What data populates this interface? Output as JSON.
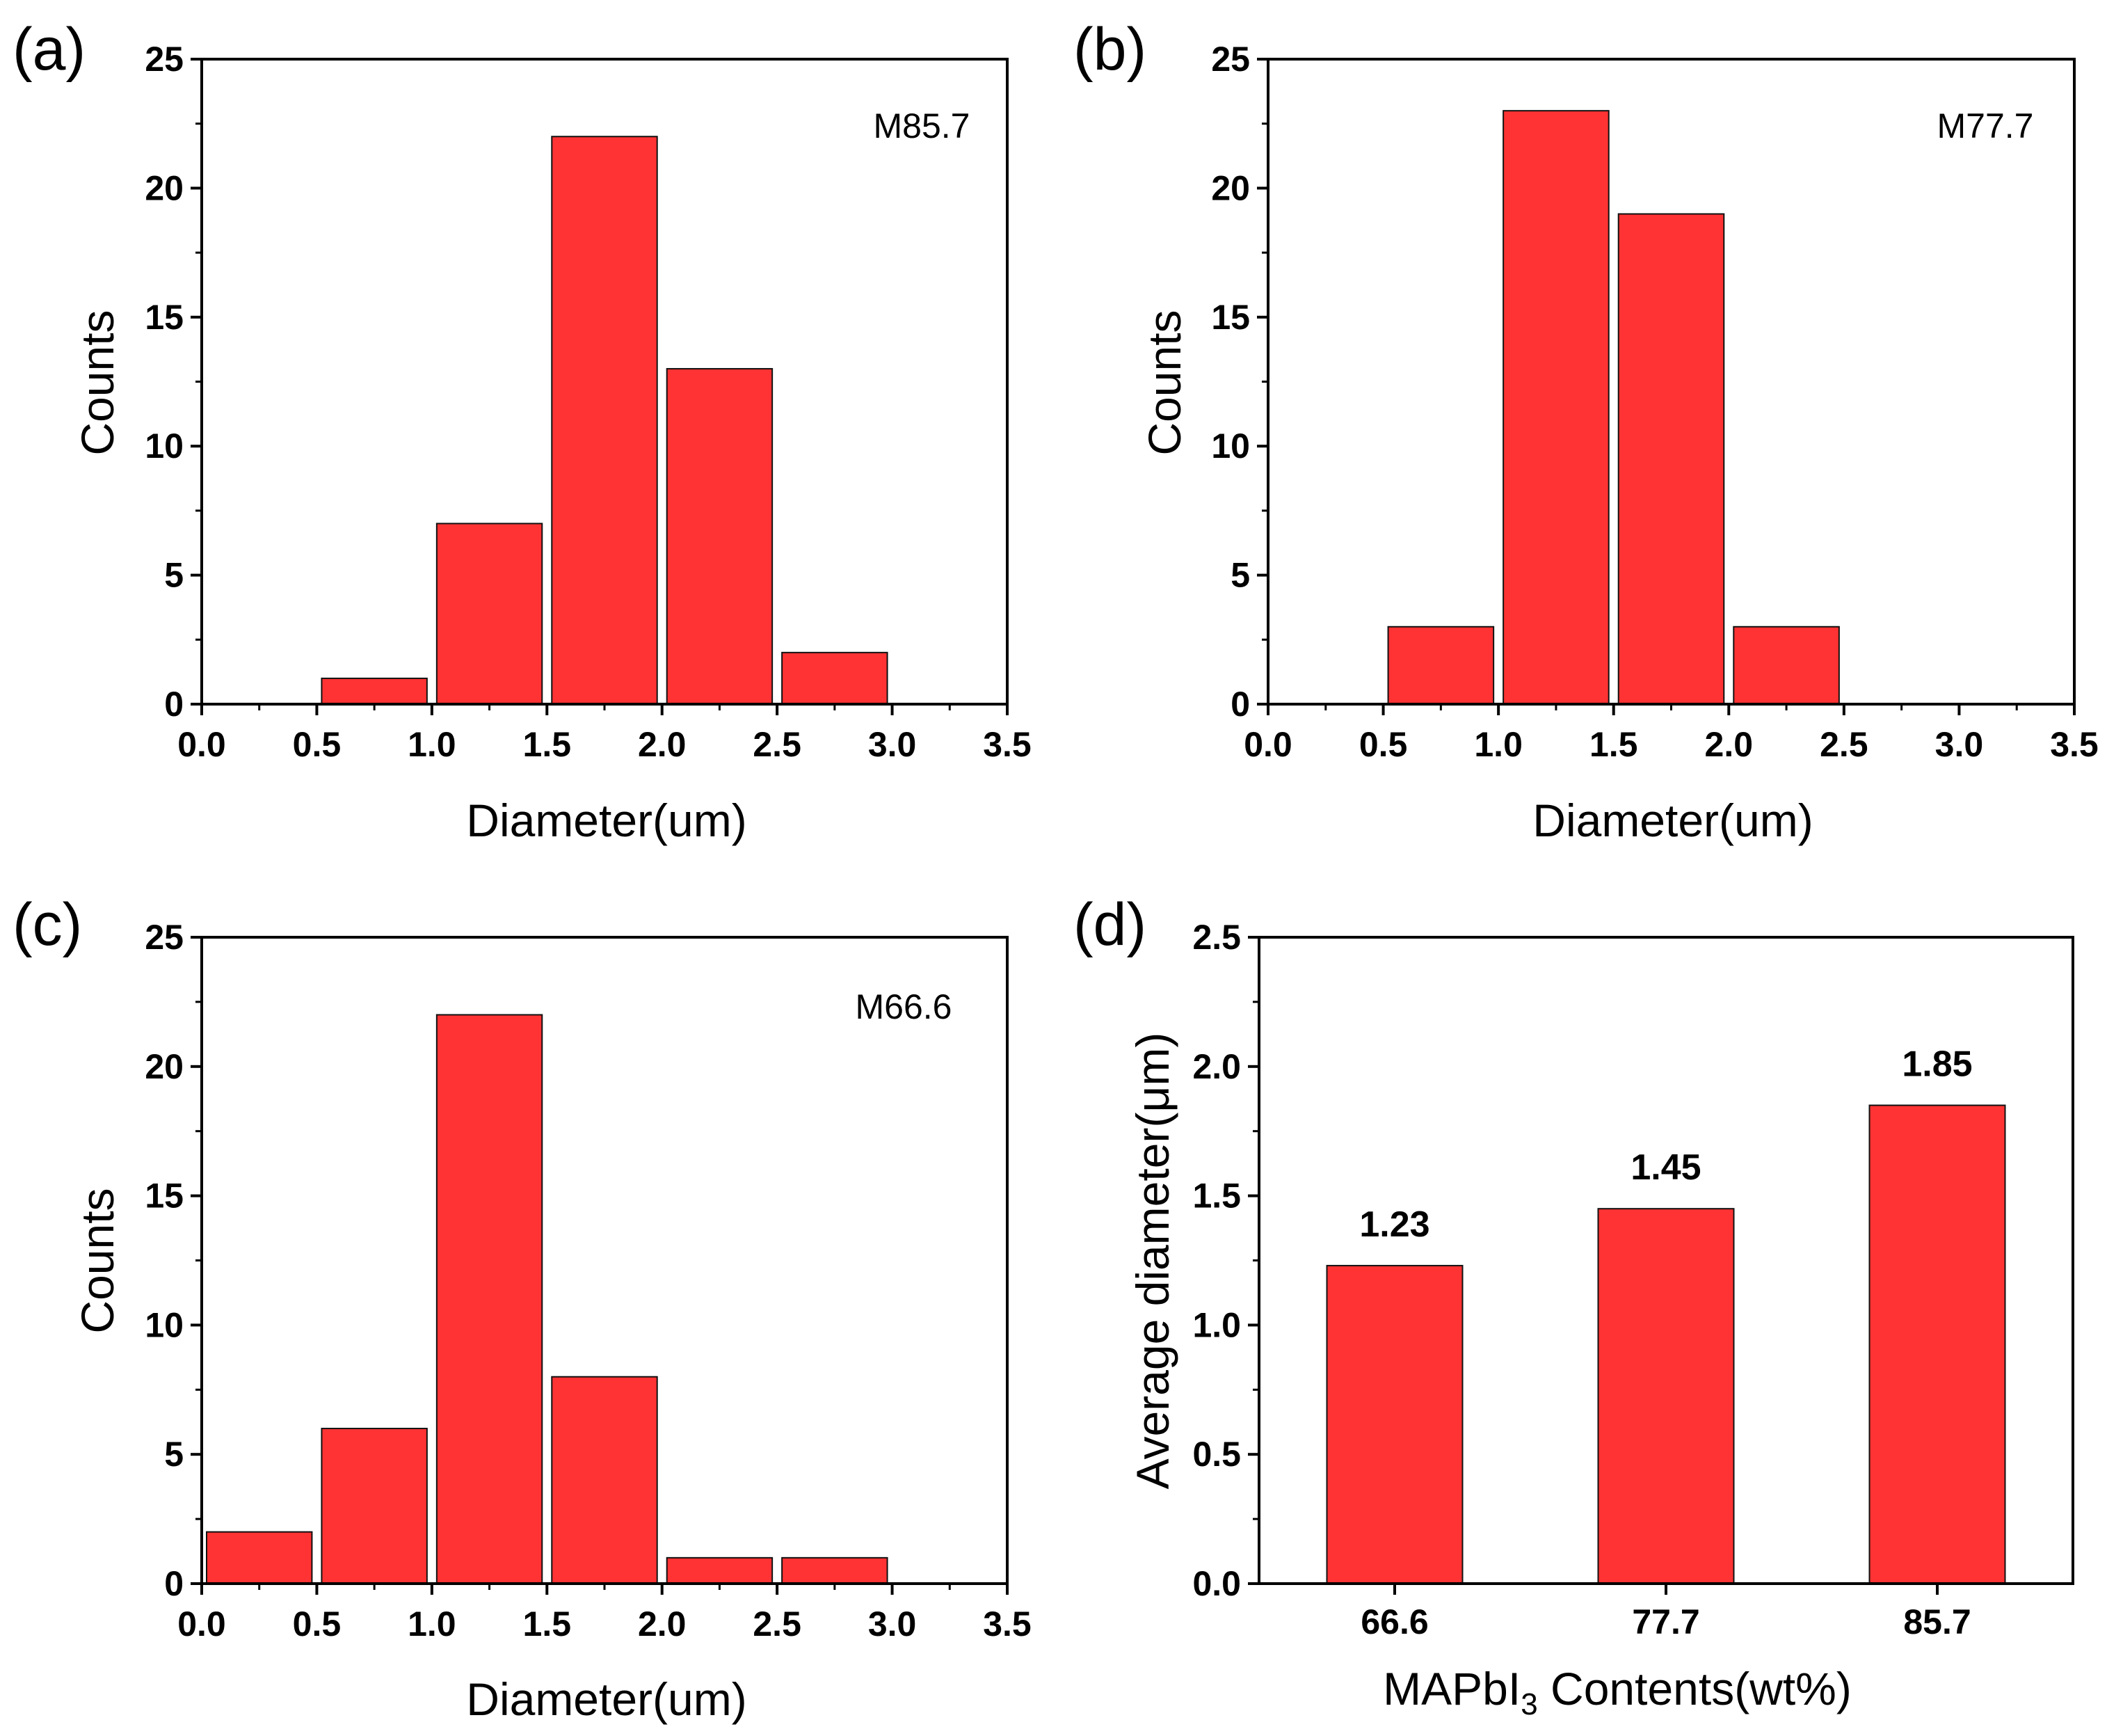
{
  "figure": {
    "bar_color": "#ff3333",
    "axis_color": "#000000"
  },
  "chart_data": [
    {
      "id": "a",
      "panel_label": "(a)",
      "type": "bar",
      "annotation": "M85.7",
      "xlabel": "Diameter(um)",
      "ylabel": "Counts",
      "xlim": [
        0,
        3.5
      ],
      "ylim": [
        0,
        25
      ],
      "xticks": [
        "0.0",
        "0.5",
        "1.0",
        "1.5",
        "2.0",
        "2.5",
        "3.0",
        "3.5"
      ],
      "yticks": [
        "0",
        "5",
        "10",
        "15",
        "20",
        "25"
      ],
      "bins": [
        {
          "start": 0.5,
          "end": 1.0,
          "value": 1
        },
        {
          "start": 1.0,
          "end": 1.5,
          "value": 7
        },
        {
          "start": 1.5,
          "end": 2.0,
          "value": 22
        },
        {
          "start": 2.0,
          "end": 2.5,
          "value": 13
        },
        {
          "start": 2.5,
          "end": 3.0,
          "value": 2
        }
      ]
    },
    {
      "id": "b",
      "panel_label": "(b)",
      "type": "bar",
      "annotation": "M77.7",
      "xlabel": "Diameter(um)",
      "ylabel": "Counts",
      "xlim": [
        0,
        3.5
      ],
      "ylim": [
        0,
        25
      ],
      "xticks": [
        "0.0",
        "0.5",
        "1.0",
        "1.5",
        "2.0",
        "2.5",
        "3.0",
        "3.5"
      ],
      "yticks": [
        "0",
        "5",
        "10",
        "15",
        "20",
        "25"
      ],
      "bins": [
        {
          "start": 0.5,
          "end": 1.0,
          "value": 3
        },
        {
          "start": 1.0,
          "end": 1.5,
          "value": 23
        },
        {
          "start": 1.5,
          "end": 2.0,
          "value": 19
        },
        {
          "start": 2.0,
          "end": 2.5,
          "value": 3
        }
      ]
    },
    {
      "id": "c",
      "panel_label": "(c)",
      "type": "bar",
      "annotation": "M66.6",
      "xlabel": "Diameter(um)",
      "ylabel": "Counts",
      "xlim": [
        0,
        3.5
      ],
      "ylim": [
        0,
        25
      ],
      "xticks": [
        "0.0",
        "0.5",
        "1.0",
        "1.5",
        "2.0",
        "2.5",
        "3.0",
        "3.5"
      ],
      "yticks": [
        "0",
        "5",
        "10",
        "15",
        "20",
        "25"
      ],
      "bins": [
        {
          "start": 0.0,
          "end": 0.5,
          "value": 2
        },
        {
          "start": 0.5,
          "end": 1.0,
          "value": 6
        },
        {
          "start": 1.0,
          "end": 1.5,
          "value": 22
        },
        {
          "start": 1.5,
          "end": 2.0,
          "value": 8
        },
        {
          "start": 2.0,
          "end": 2.5,
          "value": 1
        },
        {
          "start": 2.5,
          "end": 3.0,
          "value": 1
        }
      ]
    },
    {
      "id": "d",
      "panel_label": "(d)",
      "type": "bar",
      "xlabel": {
        "main": "MAPbI",
        "subscript": "3",
        "rest": " Contents(wt%)"
      },
      "ylabel": "Average diameter(μm)",
      "ylim": [
        0,
        2.5
      ],
      "yticks": [
        "0.0",
        "0.5",
        "1.0",
        "1.5",
        "2.0",
        "2.5"
      ],
      "categories": [
        "66.6",
        "77.7",
        "85.7"
      ],
      "values": [
        1.23,
        1.45,
        1.85
      ],
      "data_labels": [
        "1.23",
        "1.45",
        "1.85"
      ]
    }
  ]
}
